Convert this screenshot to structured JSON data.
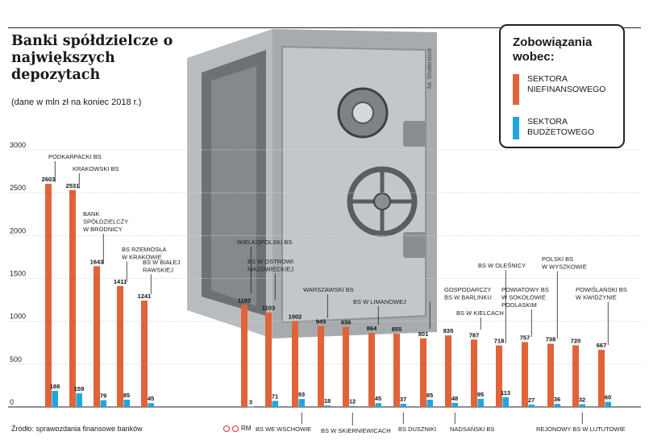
{
  "header": {
    "title": "Banki spółdzielcze o największych depozytach",
    "subtitle": "(dane w mln zł na koniec 2018 r.)"
  },
  "legend": {
    "title": "Zobowiązania wobec:",
    "items": [
      {
        "label": "SEKTORA NIEFINANSOWEGO",
        "color": "#e0633a"
      },
      {
        "label": "SEKTORA BUDŻETOWEGO",
        "color": "#1fa6e0"
      }
    ]
  },
  "photo_credit": "fot. Shutterstock",
  "footer": {
    "source": "Źródło: sprawozdania finansowe banków",
    "rm": "RM"
  },
  "chart_data": {
    "type": "bar",
    "ylim": [
      0,
      3000
    ],
    "yticks": [
      "0",
      "500",
      "1000",
      "1500",
      "2000",
      "2500",
      "3000"
    ],
    "grid": true,
    "categories": [
      "PODKARPACKI BS",
      "KRAKOWSKI BS",
      "BANK SPÓŁDZIELCZY W BRODNICY",
      "BS RZEMIOSŁA W KRAKOWIE",
      "BS W BIAŁEJ RAWSKIEJ",
      "WIELKOPOLSKI BS",
      "BS W OSTROWI MAZOWIECKIEJ",
      "BS WE WSCHOWIE",
      "WARSZAWSKI BS",
      "BS W SKIERNIEWICACH",
      "BS W LIMANOWEJ",
      "BS DUSZNIKI",
      "GOSPODARCZY BS W BARLINKU",
      "NADSAŃSKI BS",
      "BS W KIELCACH",
      "BS W OLEŚNICY",
      "POWIATOWY BS W SOKOŁOWIE PODLASKIM",
      "POLSKI BS W WYSZKOWIE",
      "REJONOWY BS W LUTUTOWIE",
      "POWIŚLAŃSKI BS W KWIDZYNIE"
    ],
    "series": [
      {
        "name": "SEKTORA NIEFINANSOWEGO",
        "values": [
          2603,
          2531,
          1643,
          1411,
          1241,
          1192,
          1103,
          1002,
          945,
          936,
          864,
          855,
          801,
          835,
          787,
          718,
          757,
          738,
          720,
          667
        ]
      },
      {
        "name": "SEKTORA BUDŻETOWEGO",
        "values": [
          188,
          159,
          79,
          85,
          45,
          3,
          71,
          93,
          18,
          12,
          45,
          37,
          85,
          48,
          95,
          113,
          27,
          36,
          32,
          60
        ]
      }
    ]
  }
}
